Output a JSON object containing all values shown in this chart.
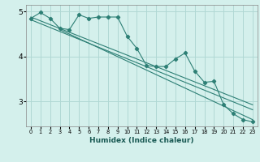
{
  "xlabel": "Humidex (Indice chaleur)",
  "bg_color": "#d4f0ec",
  "line_color": "#2d7f75",
  "grid_color": "#b0d8d4",
  "xlim": [
    -0.5,
    23.5
  ],
  "ylim": [
    2.45,
    5.15
  ],
  "yticks": [
    3,
    4,
    5
  ],
  "xticks": [
    0,
    1,
    2,
    3,
    4,
    5,
    6,
    7,
    8,
    9,
    10,
    11,
    12,
    13,
    14,
    15,
    16,
    17,
    18,
    19,
    20,
    21,
    22,
    23
  ],
  "data_x": [
    0,
    1,
    2,
    3,
    4,
    5,
    6,
    7,
    8,
    9,
    10,
    11,
    12,
    13,
    14,
    15,
    16,
    17,
    18,
    19,
    20,
    21,
    22,
    23
  ],
  "data_y": [
    4.85,
    4.98,
    4.85,
    4.63,
    4.6,
    4.93,
    4.85,
    4.88,
    4.88,
    4.88,
    4.45,
    4.18,
    3.8,
    3.78,
    3.78,
    3.95,
    4.08,
    3.68,
    3.43,
    3.45,
    2.93,
    2.73,
    2.6,
    2.55
  ],
  "line1_x": [
    0,
    23
  ],
  "line1_y": [
    4.88,
    2.93
  ],
  "line2_x": [
    0,
    23
  ],
  "line2_y": [
    4.82,
    2.82
  ],
  "line3_x": [
    3,
    23
  ],
  "line3_y": [
    4.6,
    2.6
  ]
}
